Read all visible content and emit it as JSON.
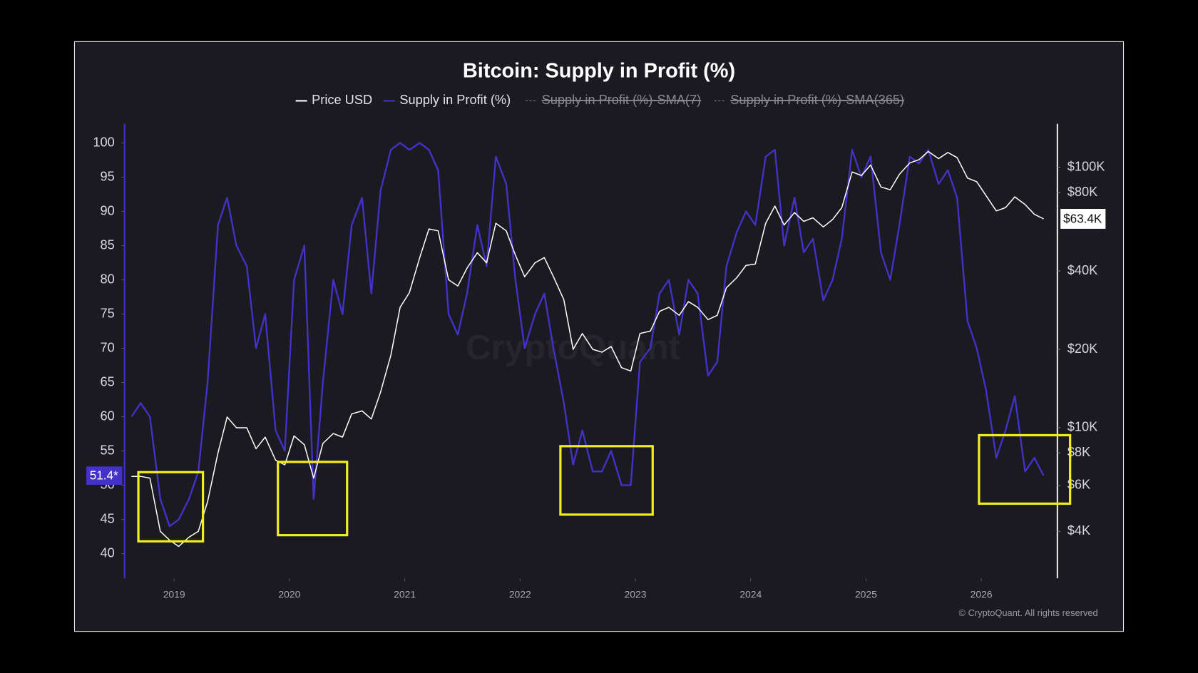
{
  "chart_data": {
    "type": "line",
    "title": "Bitcoin: Supply in Profit (%)",
    "watermark": "CryptoQuant",
    "footer": "© CryptoQuant. All rights reserved",
    "x": [
      2018.63,
      2018.71,
      2018.79,
      2018.88,
      2018.96,
      2019.04,
      2019.13,
      2019.21,
      2019.29,
      2019.38,
      2019.46,
      2019.54,
      2019.63,
      2019.71,
      2019.79,
      2019.88,
      2019.96,
      2020.04,
      2020.13,
      2020.21,
      2020.29,
      2020.38,
      2020.46,
      2020.54,
      2020.63,
      2020.71,
      2020.79,
      2020.88,
      2020.96,
      2021.04,
      2021.13,
      2021.21,
      2021.29,
      2021.38,
      2021.46,
      2021.54,
      2021.63,
      2021.71,
      2021.79,
      2021.88,
      2021.96,
      2022.04,
      2022.13,
      2022.21,
      2022.29,
      2022.38,
      2022.46,
      2022.54,
      2022.63,
      2022.71,
      2022.79,
      2022.88,
      2022.96,
      2023.04,
      2023.13,
      2023.21,
      2023.29,
      2023.38,
      2023.46,
      2023.54,
      2023.63,
      2023.71,
      2023.79,
      2023.88,
      2023.96,
      2024.04,
      2024.13,
      2024.21,
      2024.29,
      2024.38,
      2024.46,
      2024.54,
      2024.63,
      2024.71,
      2024.79,
      2024.88,
      2024.96,
      2025.04,
      2025.13,
      2025.21,
      2025.29,
      2025.38,
      2025.46,
      2025.54,
      2025.63,
      2025.71,
      2025.79,
      2025.88,
      2025.96,
      2026.04,
      2026.13,
      2026.21,
      2026.29,
      2026.38,
      2026.46,
      2026.54
    ],
    "series": [
      {
        "name": "Price USD",
        "color": "#ffffff",
        "axis": "y2",
        "values": [
          6500,
          6500,
          6400,
          4000,
          3700,
          3500,
          3800,
          4000,
          5200,
          8000,
          11000,
          10000,
          10000,
          8300,
          9200,
          7500,
          7200,
          9300,
          8600,
          6400,
          8700,
          9500,
          9200,
          11300,
          11600,
          10800,
          13700,
          19000,
          29000,
          33000,
          45000,
          58000,
          57000,
          37000,
          35000,
          41000,
          47000,
          43000,
          61000,
          57000,
          46000,
          38000,
          43000,
          45000,
          38000,
          31000,
          20000,
          23000,
          20000,
          19500,
          20500,
          17000,
          16500,
          23000,
          23500,
          28000,
          29000,
          27000,
          30500,
          29000,
          26000,
          27000,
          34500,
          37700,
          42000,
          42500,
          61000,
          71000,
          60000,
          67000,
          62000,
          64000,
          59000,
          63000,
          70000,
          96000,
          93000,
          102000,
          84000,
          82000,
          94000,
          104000,
          107000,
          115000,
          108000,
          114000,
          109000,
          91000,
          88000,
          78000,
          68000,
          70000,
          77000,
          72000,
          66000,
          63400
        ]
      },
      {
        "name": "Supply in Profit (%)",
        "color": "#4331c9",
        "values": [
          60,
          62,
          60,
          48,
          44,
          45,
          48,
          52,
          65,
          88,
          92,
          85,
          82,
          70,
          75,
          58,
          55,
          80,
          85,
          48,
          65,
          80,
          75,
          88,
          92,
          78,
          93,
          99,
          100,
          99,
          100,
          99,
          96,
          75,
          72,
          78,
          88,
          82,
          98,
          94,
          80,
          70,
          75,
          78,
          70,
          62,
          53,
          58,
          52,
          52,
          55,
          50,
          50,
          68,
          70,
          78,
          80,
          72,
          80,
          78,
          66,
          68,
          82,
          87,
          90,
          88,
          98,
          99,
          85,
          92,
          84,
          86,
          77,
          80,
          86,
          99,
          95,
          98,
          84,
          80,
          88,
          98,
          97,
          99,
          94,
          96,
          92,
          74,
          70,
          64,
          54,
          58,
          63,
          52,
          54,
          51.4
        ]
      }
    ],
    "hidden_series": [
      {
        "name": "Supply in Profit (%)-SMA(7)",
        "color": "#777777"
      },
      {
        "name": "Supply in Profit (%)-SMA(365)",
        "color": "#777777"
      }
    ],
    "xlim": [
      2018.57,
      2026.66
    ],
    "xticks": [
      2019,
      2020,
      2021,
      2022,
      2023,
      2024,
      2025,
      2026
    ],
    "ylim": [
      36.4,
      102.8
    ],
    "yticks": [
      40,
      45,
      50,
      55,
      60,
      65,
      70,
      75,
      80,
      85,
      90,
      95,
      100
    ],
    "y2lim": [
      2640,
      147000
    ],
    "y2log": true,
    "y2ticks": [
      {
        "value": 4000,
        "label": "$4K"
      },
      {
        "value": 6000,
        "label": "$6K"
      },
      {
        "value": 8000,
        "label": "$8K"
      },
      {
        "value": 10000,
        "label": "$10K"
      },
      {
        "value": 20000,
        "label": "$20K"
      },
      {
        "value": 40000,
        "label": "$40K"
      },
      {
        "value": 80000,
        "label": "$80K"
      },
      {
        "value": 100000,
        "label": "$100K"
      }
    ],
    "supply_marker": {
      "value": 51.4,
      "label": "51.4*"
    },
    "price_marker": {
      "value": 63400,
      "label": "$63.4K"
    },
    "highlights": [
      {
        "x": [
          2018.69,
          2019.25
        ],
        "y": [
          41.8,
          51.9
        ]
      },
      {
        "x": [
          2019.9,
          2020.5
        ],
        "y": [
          42.7,
          53.4
        ]
      },
      {
        "x": [
          2022.35,
          2023.15
        ],
        "y": [
          45.7,
          55.7
        ]
      },
      {
        "x": [
          2025.98,
          2026.77
        ],
        "y": [
          47.3,
          57.3
        ]
      }
    ],
    "highlight_color": "#f2ee1c"
  }
}
